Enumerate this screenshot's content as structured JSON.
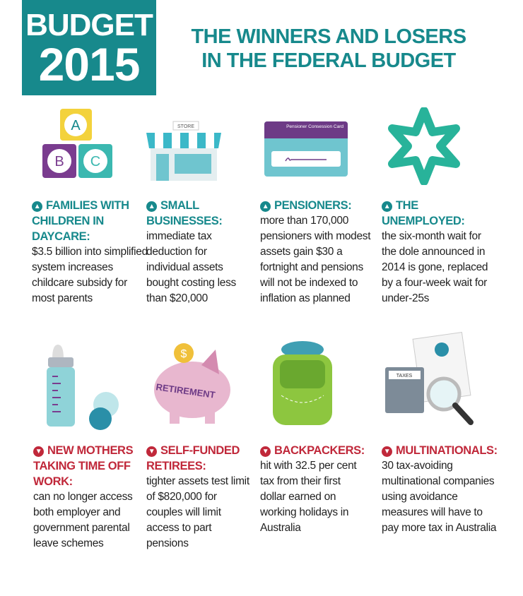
{
  "header": {
    "badge_line1": "BUDGET",
    "badge_line2": "2015",
    "title_line1": "THE WINNERS AND  LOSERS",
    "title_line2": "IN THE FEDERAL BUDGET"
  },
  "colors": {
    "teal": "#17898c",
    "red": "#c0283a"
  },
  "illustrations": {
    "blocks_letters": [
      "A",
      "B",
      "C"
    ],
    "store_sign": "STORE",
    "card_text": "Pensioner Consession Card",
    "piggy_label": "RETIREMENT",
    "coin_symbol": "$",
    "calculator_label": "TAXES"
  },
  "items": [
    {
      "direction": "up",
      "icon": "arrow-up-icon",
      "heading": "FAMILIES WITH CHILDREN IN DAYCARE:",
      "body": "$3.5 billion into simplified system increases childcare subsidy for most parents"
    },
    {
      "direction": "up",
      "icon": "arrow-up-icon",
      "heading": "SMALL BUSINESSES:",
      "body": "immediate tax deduction for individual assets bought costing less than $20,000"
    },
    {
      "direction": "up",
      "icon": "arrow-up-icon",
      "heading": "PENSIONERS:",
      "body": "more than 170,000 pensioners with modest assets gain $30 a fortnight and pensions will not be indexed to inflation as planned"
    },
    {
      "direction": "up",
      "icon": "arrow-up-icon",
      "heading": "THE UNEMPLOYED:",
      "body": "the six-month wait for the dole announced in 2014 is gone, replaced by a four-week wait for under-25s"
    },
    {
      "direction": "down",
      "icon": "arrow-down-icon",
      "heading": "NEW MOTHERS TAKING TIME OFF WORK:",
      "body": "can no longer access both employer and government parental leave schemes"
    },
    {
      "direction": "down",
      "icon": "arrow-down-icon",
      "heading": "SELF-FUNDED RETIREES:",
      "body": "tighter assets test limit of $820,000 for couples will limit access to part pensions"
    },
    {
      "direction": "down",
      "icon": "arrow-down-icon",
      "heading": "BACKPACKERS:",
      "body": "hit with 32.5 per cent tax from their first dollar earned on working holidays in Australia"
    },
    {
      "direction": "down",
      "icon": "arrow-down-icon",
      "heading": "MULTINATIONALS:",
      "body": "30 tax-avoiding multinational companies using avoidance measures will have to pay more tax in Australia"
    }
  ]
}
